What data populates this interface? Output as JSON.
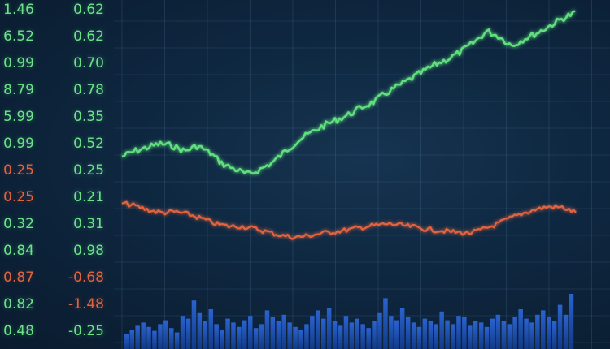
{
  "chart_data": {
    "type": "line",
    "title": "",
    "xlabel": "",
    "ylabel": "",
    "grid": true,
    "tick_columns": [
      {
        "labels": [
          "1.46",
          "6.52",
          "0.99",
          "8.79",
          "5.99",
          "0.99",
          "0.25",
          "0.25",
          "0.32",
          "0.84",
          "0.87",
          "0.82",
          "0.48"
        ],
        "colors": [
          "green",
          "green",
          "green",
          "green",
          "green",
          "green",
          "red",
          "red",
          "green",
          "green",
          "red",
          "green",
          "green"
        ]
      },
      {
        "labels": [
          "0.62",
          "0.62",
          "0.70",
          "0.78",
          "0.35",
          "0.52",
          "0.25",
          "0.21",
          "0.31",
          "0.98",
          "-0.68",
          "-1.48",
          "-0.25"
        ],
        "colors": [
          "green",
          "green",
          "green",
          "green",
          "green",
          "green",
          "green",
          "green",
          "green",
          "green",
          "red",
          "red",
          "green"
        ]
      }
    ],
    "series": [
      {
        "type": "line",
        "color": "#5ee07c",
        "y_range": [
          0,
          1
        ],
        "values": [
          0.21,
          0.24,
          0.26,
          0.28,
          0.27,
          0.24,
          0.27,
          0.23,
          0.17,
          0.14,
          0.11,
          0.14,
          0.18,
          0.24,
          0.3,
          0.34,
          0.38,
          0.41,
          0.44,
          0.48,
          0.51,
          0.56,
          0.6,
          0.64,
          0.68,
          0.72,
          0.75,
          0.79,
          0.84,
          0.9,
          0.87,
          0.82,
          0.86,
          0.89,
          0.93,
          0.97,
          1.0
        ]
      },
      {
        "type": "line",
        "color": "#e2643f",
        "y_range": [
          0,
          1
        ],
        "values": [
          0.9,
          0.87,
          0.82,
          0.79,
          0.8,
          0.77,
          0.72,
          0.66,
          0.63,
          0.63,
          0.6,
          0.56,
          0.52,
          0.5,
          0.52,
          0.55,
          0.57,
          0.59,
          0.62,
          0.64,
          0.66,
          0.64,
          0.62,
          0.59,
          0.58,
          0.56,
          0.55,
          0.59,
          0.65,
          0.72,
          0.78,
          0.83,
          0.86,
          0.85,
          0.79
        ]
      },
      {
        "type": "bar",
        "color": "#1a4aa8",
        "values": [
          0.28,
          0.35,
          0.42,
          0.48,
          0.4,
          0.33,
          0.45,
          0.52,
          0.38,
          0.3,
          0.6,
          0.55,
          0.88,
          0.65,
          0.5,
          0.72,
          0.45,
          0.35,
          0.55,
          0.48,
          0.4,
          0.52,
          0.6,
          0.38,
          0.45,
          0.7,
          0.58,
          0.5,
          0.62,
          0.48,
          0.4,
          0.35,
          0.45,
          0.6,
          0.7,
          0.55,
          0.75,
          0.5,
          0.42,
          0.6,
          0.48,
          0.55,
          0.45,
          0.38,
          0.5,
          0.65,
          0.92,
          0.6,
          0.52,
          0.75,
          0.58,
          0.48,
          0.4,
          0.55,
          0.5,
          0.45,
          0.68,
          0.52,
          0.45,
          0.6,
          0.58,
          0.42,
          0.5,
          0.48,
          0.4,
          0.55,
          0.62,
          0.5,
          0.45,
          0.58,
          0.72,
          0.55,
          0.48,
          0.62,
          0.7,
          0.58,
          0.5,
          0.8,
          0.62,
          1.0
        ]
      }
    ]
  }
}
